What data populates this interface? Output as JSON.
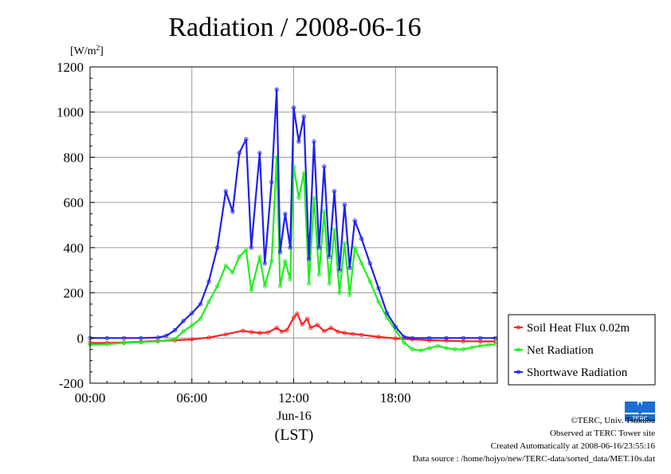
{
  "chart_data": {
    "type": "line",
    "title": "Radiation / 2008-06-16",
    "ylabel": "[W/m2]",
    "ylabel_parts": {
      "base": "[W/m",
      "sup": "2",
      "close": "]"
    },
    "xlabel": "Jun-16",
    "xlabel2": "(LST)",
    "ylim": [
      -200,
      1200
    ],
    "xlim": [
      0,
      24
    ],
    "yticks": [
      -200,
      0,
      200,
      400,
      600,
      800,
      1000,
      1200
    ],
    "xticks": [
      {
        "x": 0,
        "label": "00:00"
      },
      {
        "x": 6,
        "label": "06:00"
      },
      {
        "x": 12,
        "label": "12:00"
      },
      {
        "x": 18,
        "label": "18:00"
      }
    ],
    "grid": true,
    "legend_position": "right",
    "series": [
      {
        "name": "Soil Heat Flux 0.02m",
        "color": "#ff2020",
        "points": [
          [
            0,
            -22
          ],
          [
            1,
            -22
          ],
          [
            2,
            -20
          ],
          [
            3,
            -16
          ],
          [
            4,
            -13
          ],
          [
            5,
            -10
          ],
          [
            6,
            -6
          ],
          [
            7,
            2
          ],
          [
            8,
            16
          ],
          [
            9,
            32
          ],
          [
            9.5,
            26
          ],
          [
            10,
            22
          ],
          [
            10.5,
            25
          ],
          [
            11,
            45
          ],
          [
            11.3,
            28
          ],
          [
            11.6,
            35
          ],
          [
            12,
            90
          ],
          [
            12.2,
            108
          ],
          [
            12.5,
            60
          ],
          [
            12.8,
            85
          ],
          [
            13,
            45
          ],
          [
            13.4,
            58
          ],
          [
            13.8,
            30
          ],
          [
            14.2,
            45
          ],
          [
            14.6,
            28
          ],
          [
            15,
            22
          ],
          [
            15.5,
            18
          ],
          [
            16,
            14
          ],
          [
            17,
            5
          ],
          [
            18,
            -2
          ],
          [
            19,
            -6
          ],
          [
            20,
            -10
          ],
          [
            21,
            -12
          ],
          [
            22,
            -14
          ],
          [
            23,
            -15
          ],
          [
            23.9,
            -15
          ]
        ]
      },
      {
        "name": "Net Radiation",
        "color": "#20ee20",
        "points": [
          [
            0,
            -30
          ],
          [
            1,
            -28
          ],
          [
            2,
            -22
          ],
          [
            3,
            -18
          ],
          [
            4,
            -15
          ],
          [
            5,
            -5
          ],
          [
            5.5,
            30
          ],
          [
            6,
            55
          ],
          [
            6.5,
            85
          ],
          [
            7,
            160
          ],
          [
            7.5,
            230
          ],
          [
            8,
            320
          ],
          [
            8.4,
            290
          ],
          [
            8.8,
            360
          ],
          [
            9.2,
            390
          ],
          [
            9.5,
            210
          ],
          [
            10,
            360
          ],
          [
            10.3,
            230
          ],
          [
            10.7,
            340
          ],
          [
            11,
            800
          ],
          [
            11.2,
            230
          ],
          [
            11.5,
            340
          ],
          [
            11.8,
            260
          ],
          [
            12,
            760
          ],
          [
            12.3,
            620
          ],
          [
            12.6,
            730
          ],
          [
            12.9,
            240
          ],
          [
            13.2,
            620
          ],
          [
            13.5,
            280
          ],
          [
            13.8,
            560
          ],
          [
            14.1,
            240
          ],
          [
            14.4,
            480
          ],
          [
            14.7,
            200
          ],
          [
            15,
            420
          ],
          [
            15.3,
            190
          ],
          [
            15.6,
            400
          ],
          [
            16,
            330
          ],
          [
            16.5,
            250
          ],
          [
            17,
            160
          ],
          [
            17.5,
            90
          ],
          [
            18,
            35
          ],
          [
            18.5,
            -20
          ],
          [
            19,
            -50
          ],
          [
            19.5,
            -55
          ],
          [
            20,
            -45
          ],
          [
            20.5,
            -35
          ],
          [
            21,
            -45
          ],
          [
            21.5,
            -50
          ],
          [
            22,
            -50
          ],
          [
            22.5,
            -42
          ],
          [
            23,
            -35
          ],
          [
            23.5,
            -30
          ],
          [
            23.9,
            -28
          ]
        ]
      },
      {
        "name": "Shortwave Radiation",
        "color": "#2020ee",
        "points": [
          [
            0,
            0
          ],
          [
            1,
            0
          ],
          [
            2,
            0
          ],
          [
            3,
            0
          ],
          [
            4,
            2
          ],
          [
            4.5,
            10
          ],
          [
            5,
            35
          ],
          [
            5.5,
            75
          ],
          [
            6,
            110
          ],
          [
            6.5,
            150
          ],
          [
            7,
            250
          ],
          [
            7.5,
            400
          ],
          [
            8,
            650
          ],
          [
            8.4,
            560
          ],
          [
            8.8,
            820
          ],
          [
            9.2,
            880
          ],
          [
            9.5,
            400
          ],
          [
            10,
            820
          ],
          [
            10.3,
            330
          ],
          [
            10.7,
            690
          ],
          [
            11,
            1100
          ],
          [
            11.2,
            380
          ],
          [
            11.5,
            550
          ],
          [
            11.8,
            400
          ],
          [
            12,
            1020
          ],
          [
            12.3,
            870
          ],
          [
            12.6,
            980
          ],
          [
            12.9,
            350
          ],
          [
            13.2,
            870
          ],
          [
            13.5,
            400
          ],
          [
            13.8,
            760
          ],
          [
            14.1,
            360
          ],
          [
            14.4,
            650
          ],
          [
            14.7,
            300
          ],
          [
            15,
            590
          ],
          [
            15.3,
            310
          ],
          [
            15.6,
            520
          ],
          [
            16,
            440
          ],
          [
            16.5,
            330
          ],
          [
            17,
            220
          ],
          [
            17.5,
            110
          ],
          [
            18,
            50
          ],
          [
            18.5,
            5
          ],
          [
            19,
            0
          ],
          [
            20,
            0
          ],
          [
            21,
            0
          ],
          [
            22,
            0
          ],
          [
            23,
            0
          ],
          [
            23.9,
            0
          ]
        ]
      }
    ]
  },
  "footer": {
    "credit": "©TERC, Univ. Tsukuba",
    "site": "Observed at TERC Tower site",
    "created": "Created Automatically at 2008-06-16/23:55:16",
    "source": "Data source : /home/hojyo/new/TERC-data/sorted_data/MET.10s.dat"
  },
  "logo": {
    "label": "TERC",
    "color": "#1a6fd0"
  }
}
